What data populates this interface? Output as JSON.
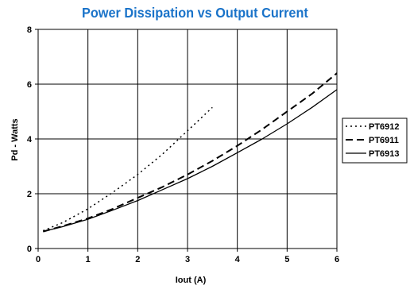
{
  "chart_data": {
    "type": "line",
    "title": "Power Dissipation vs Output Current",
    "xlabel": "Iout (A)",
    "ylabel": "Pd - Watts",
    "xlim": [
      0,
      6
    ],
    "ylim": [
      0,
      8
    ],
    "xticks": [
      0,
      1,
      2,
      3,
      4,
      5,
      6
    ],
    "yticks": [
      0,
      2,
      4,
      6,
      8
    ],
    "grid": true,
    "legend": "right",
    "series": [
      {
        "name": "PT6912",
        "style": "dotted",
        "x": [
          0.1,
          0.5,
          1.0,
          1.5,
          2.0,
          2.5,
          3.0,
          3.5
        ],
        "y": [
          0.65,
          0.95,
          1.45,
          2.05,
          2.7,
          3.45,
          4.3,
          5.15
        ]
      },
      {
        "name": "PT6911",
        "style": "dashed",
        "x": [
          0.1,
          0.5,
          1.0,
          1.5,
          2.0,
          2.5,
          3.0,
          3.5,
          4.0,
          4.5,
          5.0,
          5.5,
          6.0
        ],
        "y": [
          0.62,
          0.82,
          1.1,
          1.45,
          1.85,
          2.25,
          2.7,
          3.2,
          3.75,
          4.35,
          5.0,
          5.65,
          6.4
        ]
      },
      {
        "name": "PT6913",
        "style": "solid",
        "x": [
          0.1,
          0.5,
          1.0,
          1.5,
          2.0,
          2.5,
          3.0,
          3.5,
          4.0,
          4.5,
          5.0,
          5.5,
          6.0
        ],
        "y": [
          0.62,
          0.8,
          1.07,
          1.4,
          1.75,
          2.15,
          2.55,
          3.0,
          3.5,
          4.0,
          4.55,
          5.15,
          5.8
        ]
      }
    ]
  }
}
